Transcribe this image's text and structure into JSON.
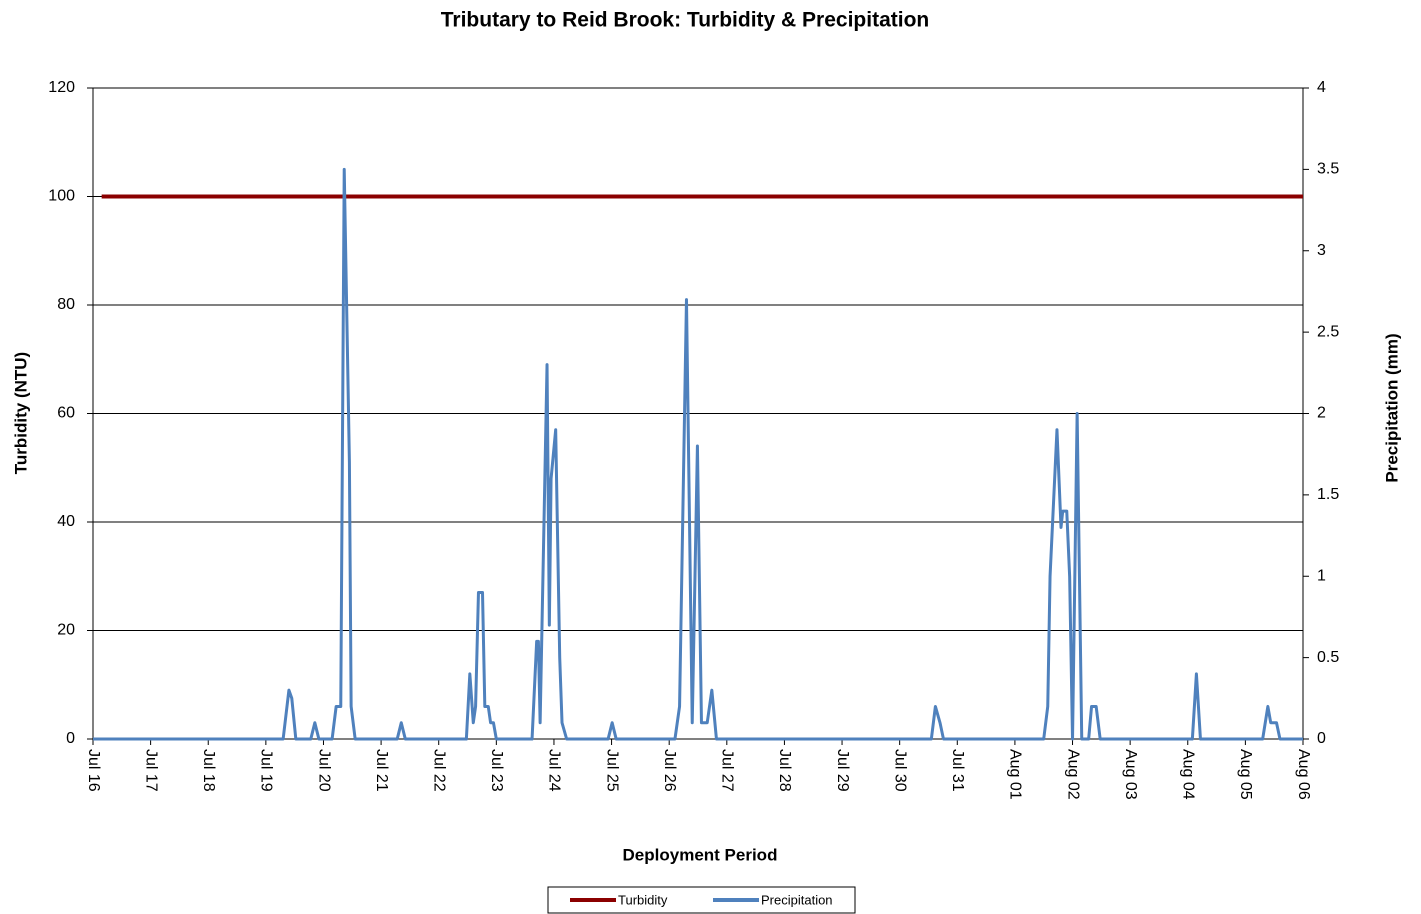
{
  "chart_data": {
    "type": "line",
    "title": "Tributary to Reid Brook: Turbidity & Precipitation",
    "x_label": "Deployment Period",
    "y_label": "Turbidity (NTU)",
    "y2_label": "Precipitation (mm)",
    "xlim": [
      0,
      21
    ],
    "xticks": [
      {
        "value": 0,
        "label": "Jul 16"
      },
      {
        "value": 1,
        "label": "Jul 17"
      },
      {
        "value": 2,
        "label": "Jul 18"
      },
      {
        "value": 3,
        "label": "Jul 19"
      },
      {
        "value": 4,
        "label": "Jul 20"
      },
      {
        "value": 5,
        "label": "Jul 21"
      },
      {
        "value": 6,
        "label": "Jul 22"
      },
      {
        "value": 7,
        "label": "Jul 23"
      },
      {
        "value": 8,
        "label": "Jul 24"
      },
      {
        "value": 9,
        "label": "Jul 25"
      },
      {
        "value": 10,
        "label": "Jul 26"
      },
      {
        "value": 11,
        "label": "Jul 27"
      },
      {
        "value": 12,
        "label": "Jul 28"
      },
      {
        "value": 13,
        "label": "Jul 29"
      },
      {
        "value": 14,
        "label": "Jul 30"
      },
      {
        "value": 15,
        "label": "Jul 31"
      },
      {
        "value": 16,
        "label": "Aug 01"
      },
      {
        "value": 17,
        "label": "Aug 02"
      },
      {
        "value": 18,
        "label": "Aug 03"
      },
      {
        "value": 19,
        "label": "Aug 04"
      },
      {
        "value": 20,
        "label": "Aug 05"
      },
      {
        "value": 21,
        "label": "Aug 06"
      }
    ],
    "ylim": [
      0,
      120
    ],
    "yticks": [
      0,
      20,
      40,
      60,
      80,
      100,
      120
    ],
    "y2lim": [
      0,
      4
    ],
    "y2ticks": [
      0,
      0.5,
      1,
      1.5,
      2,
      2.5,
      3,
      3.5,
      4
    ],
    "grid": true,
    "legend": "bottom",
    "series": [
      {
        "name": "Turbidity",
        "color": "#8b0000",
        "x": [
          0.15,
          21
        ],
        "values": [
          100,
          100
        ]
      },
      {
        "name": "Precipitation",
        "color": "#4f81bd",
        "axis": "y2",
        "x": [
          0,
          3.3,
          3.4,
          3.45,
          3.52,
          3.78,
          3.85,
          3.92,
          4.15,
          4.22,
          4.3,
          4.36,
          4.45,
          4.48,
          4.55,
          5.28,
          5.35,
          5.42,
          6.48,
          6.54,
          6.6,
          6.64,
          6.69,
          6.76,
          6.8,
          6.86,
          6.9,
          6.95,
          7.0,
          7.62,
          7.7,
          7.73,
          7.76,
          7.88,
          7.92,
          7.95,
          8.03,
          8.1,
          8.14,
          8.22,
          8.94,
          9.01,
          9.08,
          10.1,
          10.18,
          10.3,
          10.4,
          10.49,
          10.56,
          10.66,
          10.74,
          10.82,
          14.55,
          14.62,
          14.7,
          14.76,
          16.5,
          16.57,
          16.61,
          16.73,
          16.8,
          16.83,
          16.9,
          16.95,
          17.0,
          17.08,
          17.16,
          17.28,
          17.33,
          17.41,
          17.48,
          19.08,
          19.15,
          19.22,
          20.3,
          20.39,
          20.44,
          20.5,
          20.54,
          20.6,
          21
        ],
        "values": [
          0,
          0,
          0.3,
          0.25,
          0,
          0,
          0.1,
          0,
          0,
          0.2,
          0.2,
          3.5,
          1.7,
          0.2,
          0,
          0,
          0.1,
          0,
          0,
          0.4,
          0.1,
          0.2,
          0.9,
          0.9,
          0.2,
          0.2,
          0.1,
          0.1,
          0,
          0,
          0.6,
          0.6,
          0.1,
          2.3,
          0.7,
          1.6,
          1.9,
          0.5,
          0.1,
          0,
          0,
          0.1,
          0,
          0,
          0.2,
          2.7,
          0.1,
          1.8,
          0.1,
          0.1,
          0.3,
          0,
          0,
          0.2,
          0.1,
          0,
          0,
          0.2,
          1.0,
          1.9,
          1.3,
          1.4,
          1.4,
          1.0,
          0,
          2.0,
          0,
          0,
          0.2,
          0.2,
          0,
          0,
          0.4,
          0,
          0,
          0.2,
          0.1,
          0.1,
          0.1,
          0,
          0
        ]
      }
    ]
  }
}
